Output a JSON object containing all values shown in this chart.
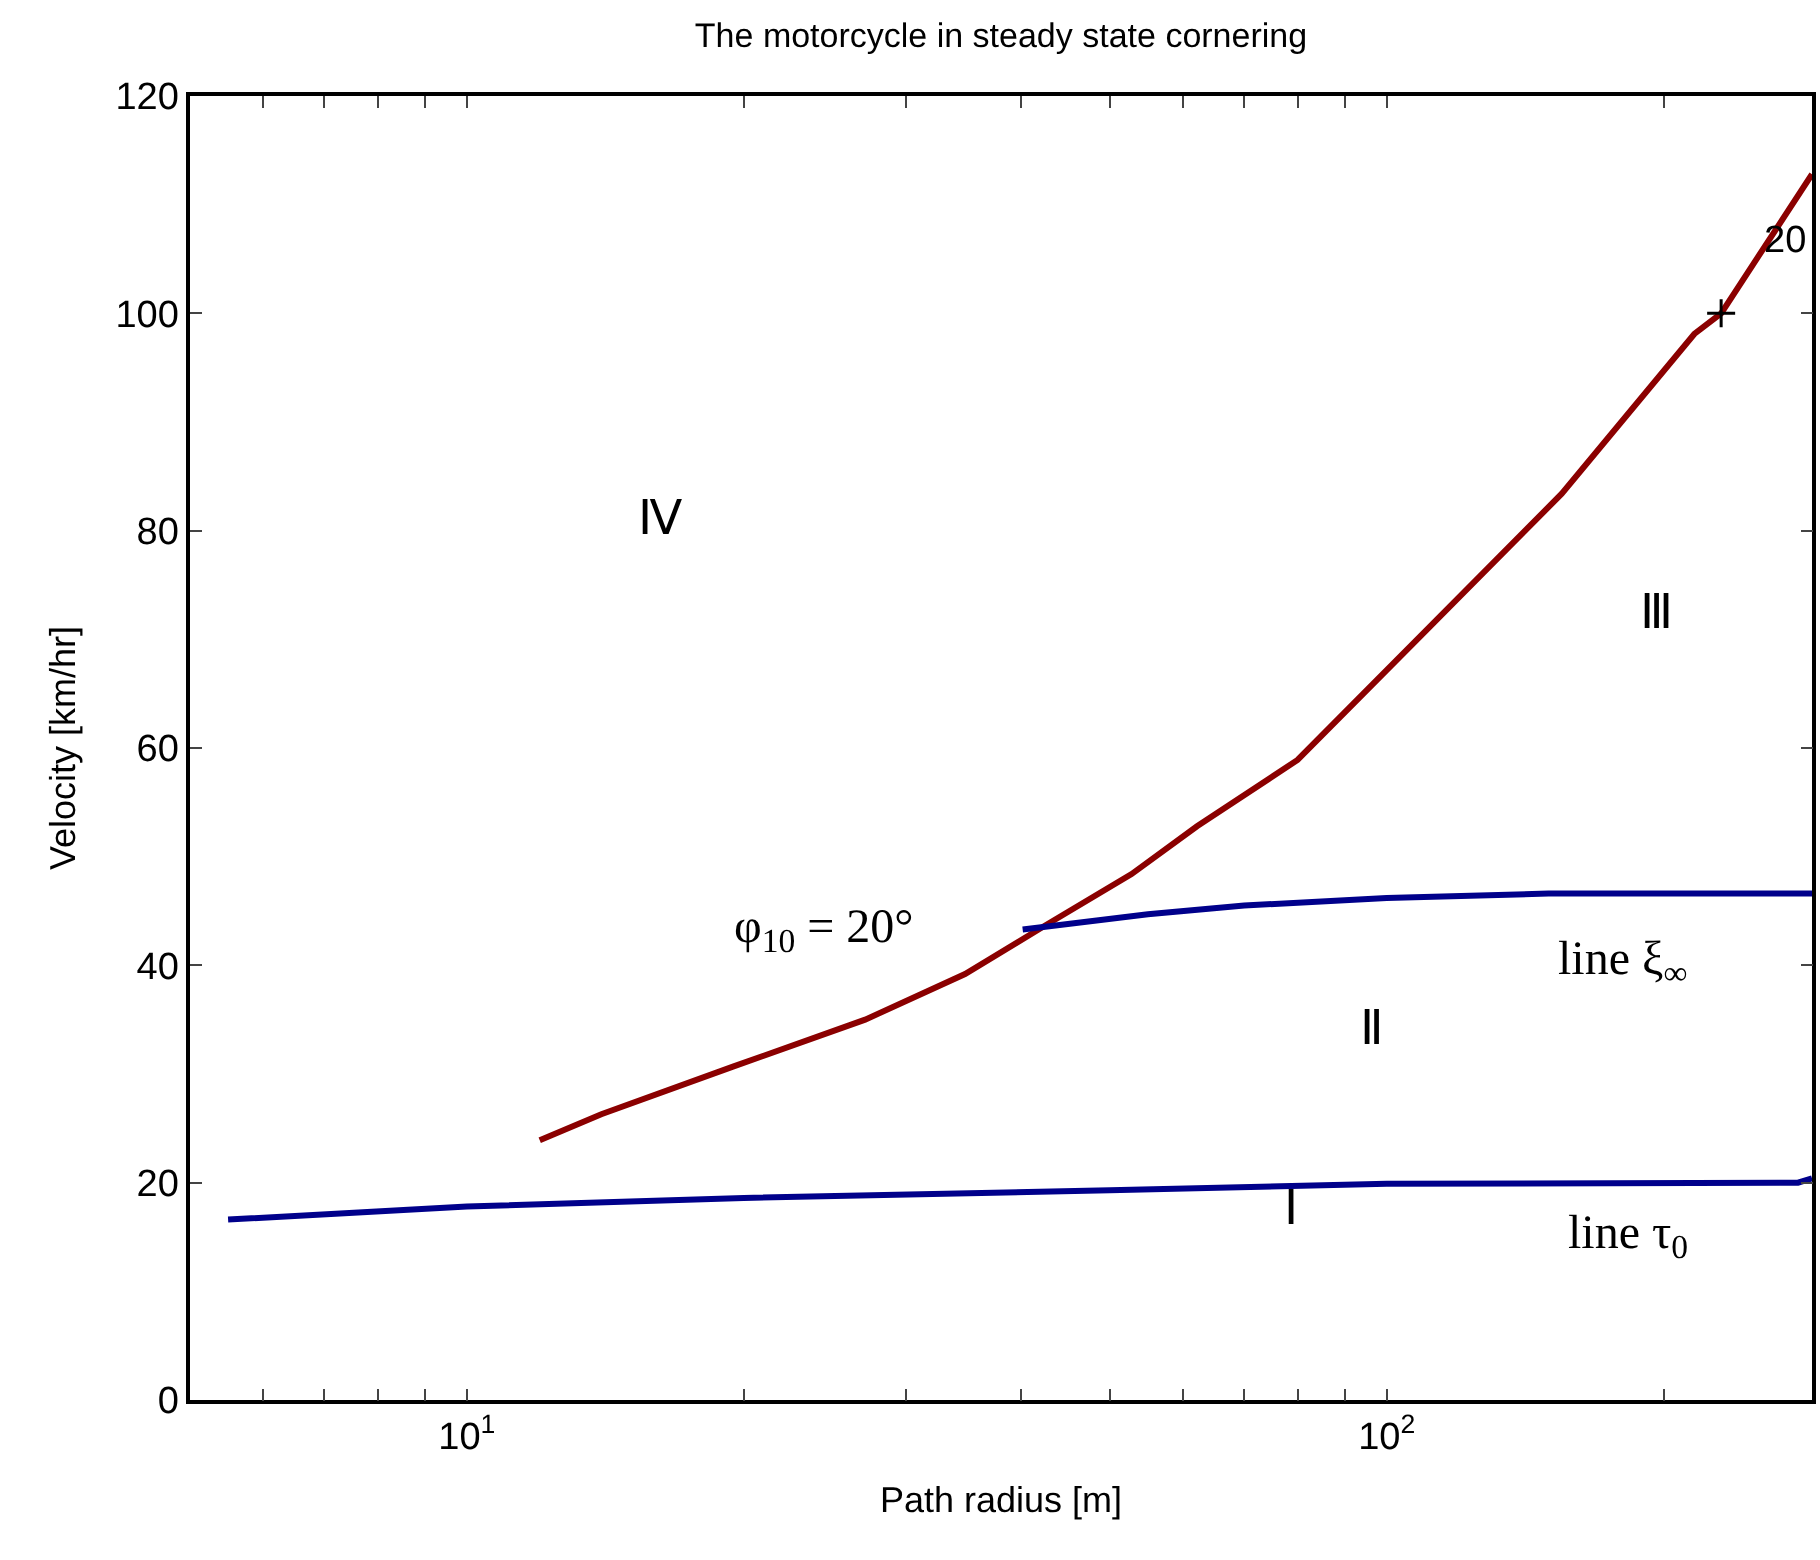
{
  "chart_data": {
    "type": "line",
    "title": "The motorcycle in steady state cornering",
    "xlabel": "Path radius [m]",
    "ylabel": "Velocity [km/hr]",
    "log": "x",
    "marker": "none",
    "line_style": "solid",
    "xlim": [
      5,
      290
    ],
    "ylim": [
      0,
      120
    ],
    "xticks": [
      {
        "value": 6,
        "label": null
      },
      {
        "value": 7,
        "label": null
      },
      {
        "value": 8,
        "label": null
      },
      {
        "value": 9,
        "label": null
      },
      {
        "value": 10,
        "label": "10$^{1}$"
      },
      {
        "value": 20,
        "label": null
      },
      {
        "value": 30,
        "label": null
      },
      {
        "value": 40,
        "label": null
      },
      {
        "value": 50,
        "label": null
      },
      {
        "value": 60,
        "label": null
      },
      {
        "value": 70,
        "label": null
      },
      {
        "value": 80,
        "label": null
      },
      {
        "value": 90,
        "label": null
      },
      {
        "value": 100,
        "label": "10$^{2}$"
      },
      {
        "value": 200,
        "label": null
      }
    ],
    "yticks": [
      0,
      20,
      40,
      60,
      80,
      100,
      120
    ],
    "series": [
      {
        "color": "#8b0000",
        "x": [
          12,
          14,
          19.5,
          27.1,
          34.8,
          42.4,
          52.8,
          62.2,
          80,
          111.5,
          155,
          216,
          231,
          290
        ],
        "values": [
          23.9,
          26.3,
          30.7,
          35.0,
          39.2,
          43.6,
          48.4,
          52.8,
          58.9,
          71.2,
          83.4,
          98.1,
          100,
          112.8
        ]
      },
      {
        "color": "#00008b",
        "x": [
          40.2,
          55,
          70,
          100,
          150,
          290
        ],
        "values": [
          43.3,
          44.7,
          45.5,
          46.2,
          46.6,
          46.6
        ]
      },
      {
        "color": "#00008b",
        "x": [
          5.5,
          10,
          20,
          50,
          100,
          280,
          290
        ],
        "values": [
          16.6,
          17.8,
          18.6,
          19.3,
          19.9,
          20.0,
          20.4
        ]
      },
      {
        "type": "scatter",
        "marker": "cross",
        "color": "#000000",
        "x": [
          231
        ],
        "values": [
          100
        ]
      }
    ],
    "annotations": [
      "Ⅳ",
      "Ⅲ",
      "Ⅱ",
      "Ⅰ",
      "φ$_{10}$ = 20°",
      "line ξ$_{∞}$",
      "line τ$_{0}$",
      {
        "text": "20",
        "x": 245,
        "y": 103
      }
    ]
  }
}
